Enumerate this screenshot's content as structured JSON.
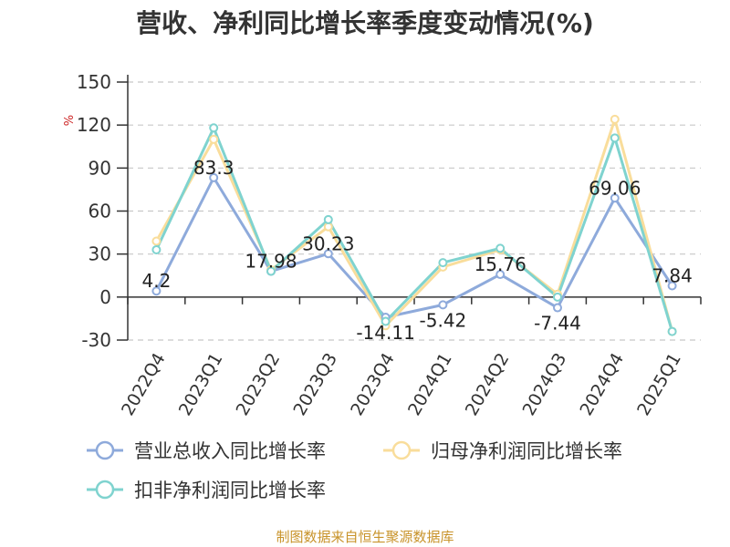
{
  "title": "营收、净利同比增长率季度变动情况(%)",
  "source": "制图数据来自恒生聚源数据库",
  "chart_data": {
    "type": "line",
    "ylabel": "%",
    "ylim": [
      -30,
      150
    ],
    "yticks": [
      -30,
      0,
      30,
      60,
      90,
      120,
      150
    ],
    "grid": true,
    "legend_position": "bottom",
    "categories": [
      "2022Q4",
      "2023Q1",
      "2023Q2",
      "2023Q3",
      "2023Q4",
      "2024Q1",
      "2024Q2",
      "2024Q3",
      "2024Q4",
      "2025Q1"
    ],
    "series": [
      {
        "name": "营业总收入同比增长率",
        "color": "#8eaadb",
        "values": [
          4.2,
          83.3,
          17.98,
          30.23,
          -14.11,
          -5.42,
          15.76,
          -7.44,
          69.06,
          7.84
        ],
        "labels": [
          "4.2",
          "83.3",
          "17.98",
          "30.23",
          "-14.11",
          "-5.42",
          "15.76",
          "-7.44",
          "69.06",
          "7.84"
        ]
      },
      {
        "name": "归母净利润同比增长率",
        "color": "#f9dd9b",
        "values": [
          39,
          110,
          19,
          49,
          -20,
          21,
          33,
          2,
          124,
          -24
        ]
      },
      {
        "name": "扣非净利润同比增长率",
        "color": "#7fd3cf",
        "values": [
          33,
          118,
          18,
          54,
          -17,
          24,
          34,
          0,
          111,
          -24
        ]
      }
    ]
  }
}
